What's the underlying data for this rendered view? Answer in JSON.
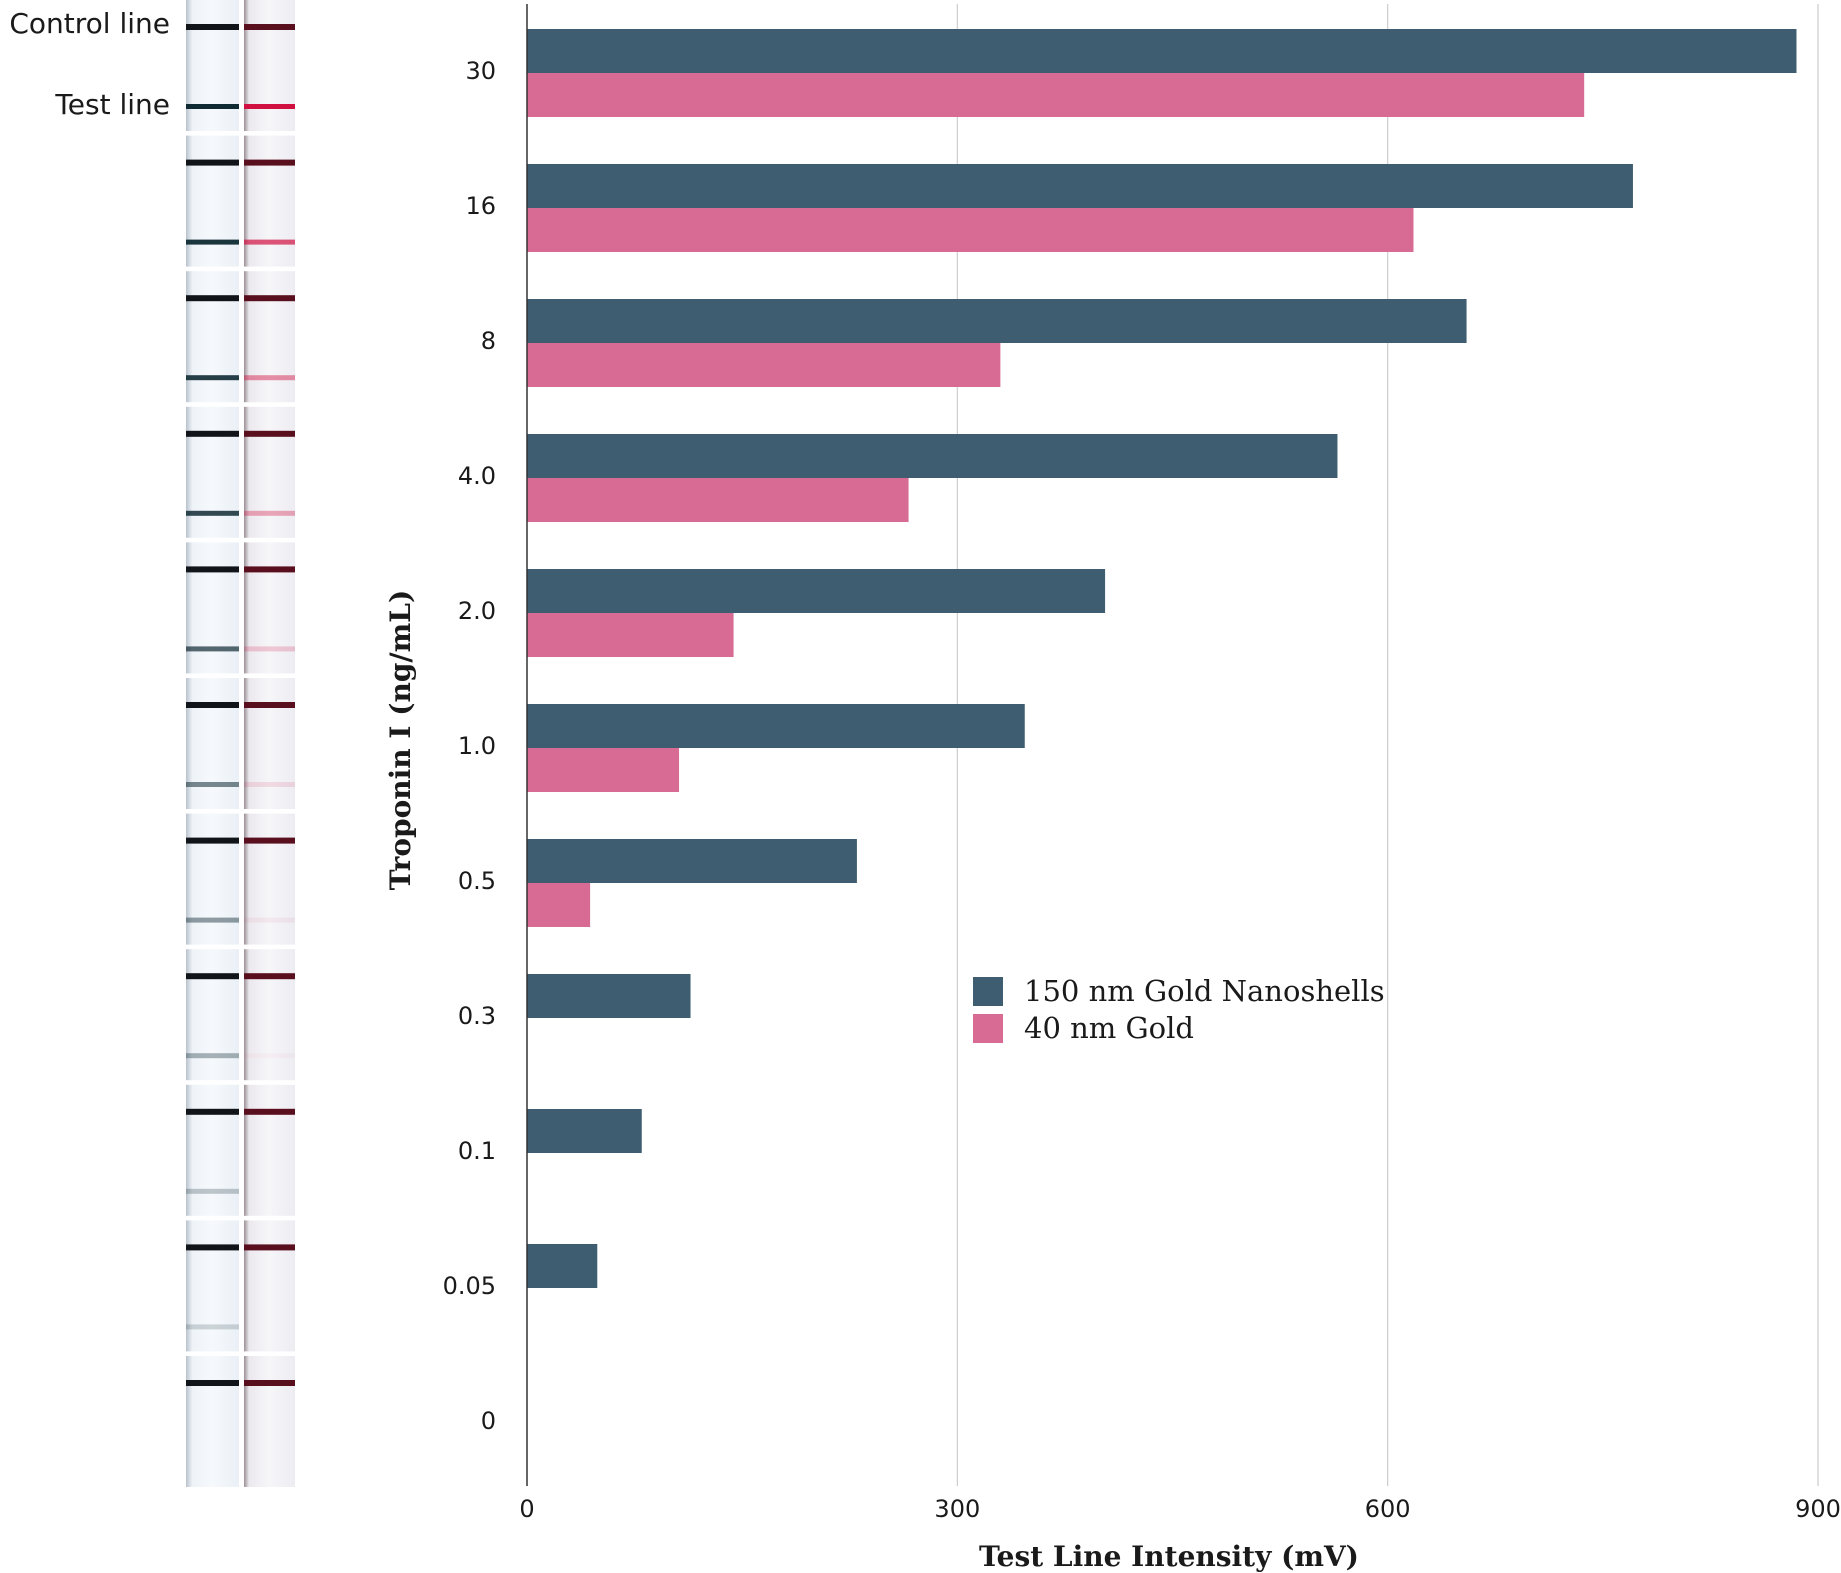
{
  "strips": {
    "control_label": "Control line",
    "test_label": "Test line",
    "count": 11
  },
  "chart_data": {
    "type": "bar",
    "orientation": "horizontal",
    "categories": [
      "30",
      "16",
      "8",
      "4.0",
      "2.0",
      "1.0",
      "0.5",
      "0.3",
      "0.1",
      "0.05",
      "0"
    ],
    "series": [
      {
        "name": "150 nm Gold Nanoshells",
        "color": "#3f5d70",
        "values": [
          885,
          771,
          655,
          565,
          403,
          347,
          230,
          114,
          80,
          49,
          null
        ]
      },
      {
        "name": "40 nm Gold",
        "color": "#d76b93",
        "values": [
          737,
          618,
          330,
          266,
          144,
          106,
          44,
          null,
          null,
          null,
          null
        ]
      }
    ],
    "xlabel": "Test Line Intensity (mV)",
    "ylabel": "Troponin I (ng/mL)",
    "xlim": [
      0,
      900
    ],
    "xticks": [
      0,
      300,
      600,
      900
    ],
    "grid": "vertical",
    "legend": "center-right"
  }
}
